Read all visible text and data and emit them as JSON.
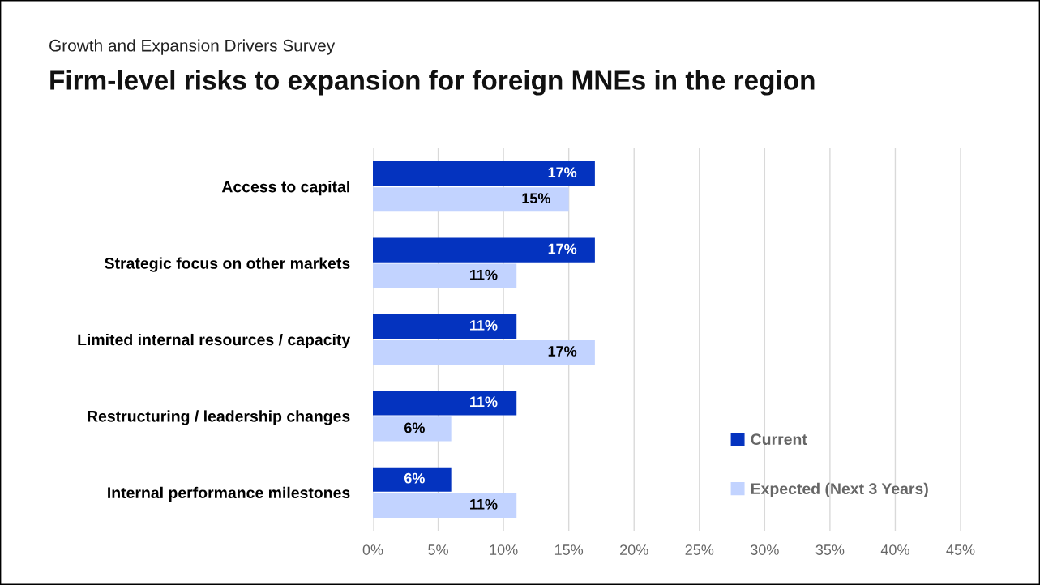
{
  "chart_data": {
    "type": "bar",
    "orientation": "horizontal",
    "subtitle": "Growth and Expansion Drivers Survey",
    "title": "Firm-level risks to expansion for foreign MNEs in the region",
    "categories": [
      "Access to capital",
      "Strategic focus on other markets",
      "Limited internal resources / capacity",
      "Restructuring / leadership changes",
      "Internal performance milestones"
    ],
    "series": [
      {
        "name": "Current",
        "color": "#0433bf",
        "values": [
          17,
          17,
          11,
          11,
          6
        ],
        "value_labels": [
          "17%",
          "17%",
          "11%",
          "11%",
          "6%"
        ]
      },
      {
        "name": "Expected (Next 3 Years)",
        "color": "#c2d3ff",
        "values": [
          15,
          11,
          17,
          6,
          11
        ],
        "value_labels": [
          "15%",
          "11%",
          "17%",
          "6%",
          "11%"
        ]
      }
    ],
    "xlim": [
      0,
      45
    ],
    "xticks": [
      {
        "value": 0,
        "label": "0%"
      },
      {
        "value": 5,
        "label": "5%"
      },
      {
        "value": 10,
        "label": "10%"
      },
      {
        "value": 15,
        "label": "15%"
      },
      {
        "value": 20,
        "label": "20%"
      },
      {
        "value": 25,
        "label": "25%"
      },
      {
        "value": 30,
        "label": "30%"
      },
      {
        "value": 35,
        "label": "35%"
      },
      {
        "value": 40,
        "label": "40%"
      },
      {
        "value": 45,
        "label": "45%"
      }
    ],
    "grid": "x",
    "legend": "lower right"
  }
}
